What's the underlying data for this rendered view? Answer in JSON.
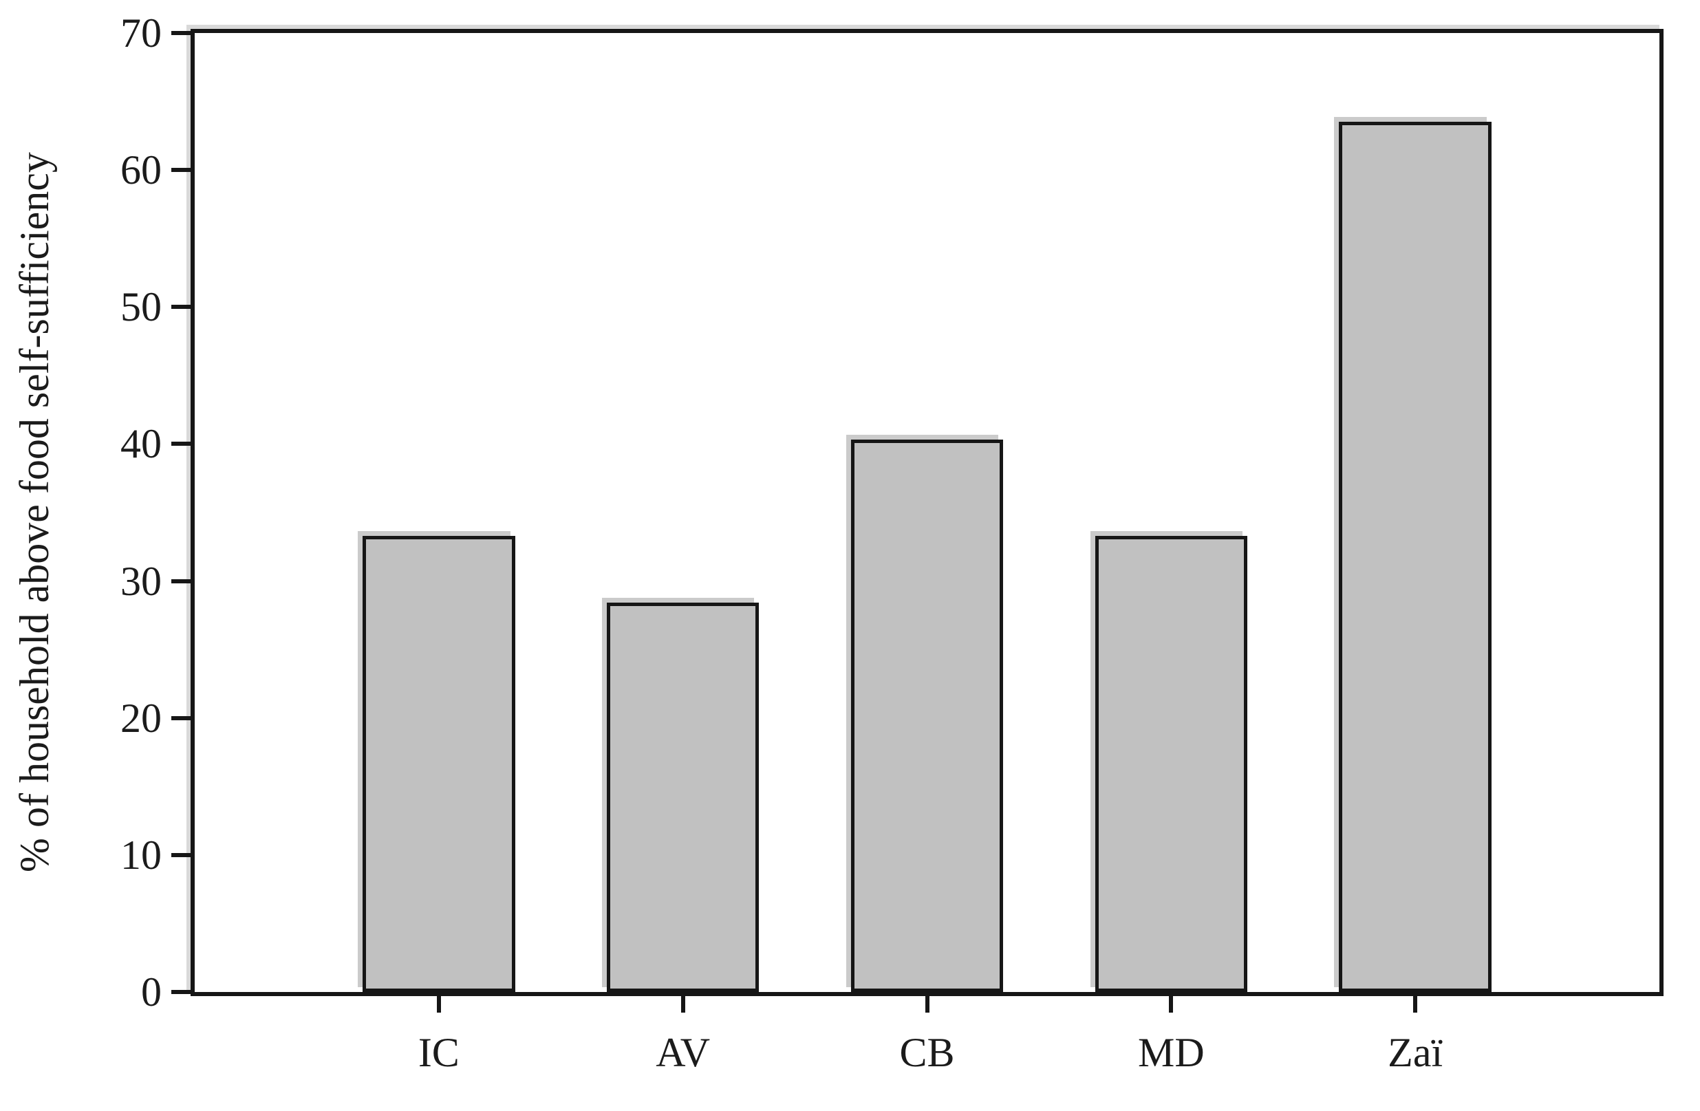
{
  "chart_data": {
    "type": "bar",
    "title": "",
    "categories": [
      "IC",
      "AV",
      "CB",
      "MD",
      "Zaï"
    ],
    "values": [
      33.3,
      28.4,
      40.3,
      33.3,
      63.5
    ],
    "xlabel": "",
    "ylabel": "% of household above food self-sufficiency",
    "ylim": [
      0,
      70
    ],
    "yticks": [
      0,
      10,
      20,
      30,
      40,
      50,
      60,
      70
    ],
    "grid": false,
    "legend": null,
    "bar_fill_color": "#c1c1c1",
    "bar_border_color": "#161616",
    "bar_shadow_color": "#cbcbcb",
    "axis_color": "#161616",
    "bar_width_frac": 0.104
  }
}
